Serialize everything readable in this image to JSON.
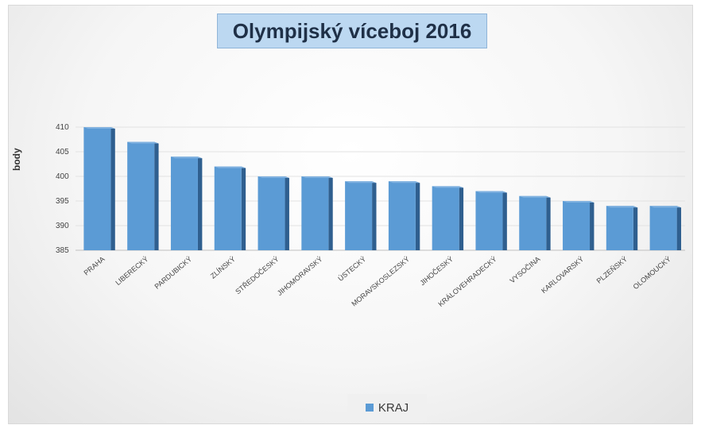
{
  "chart_data": {
    "type": "bar",
    "title": "Olympijský víceboj 2016",
    "ylabel": "body",
    "xlabel": "",
    "ylim": [
      385,
      410
    ],
    "yticks": [
      385,
      390,
      395,
      400,
      405,
      410
    ],
    "grid": true,
    "legend_position": "bottom",
    "series": [
      {
        "name": "KRAJ",
        "color": "#5b9bd5",
        "values": [
          410,
          407,
          404,
          402,
          400,
          400,
          399,
          399,
          398,
          397,
          396,
          395,
          394,
          394
        ]
      }
    ],
    "categories": [
      "PRAHA",
      "LIBERECKÝ",
      "PARDUBICKÝ",
      "ZLÍNSKÝ",
      "STŘEDOČESKÝ",
      "JIHOMORAVSKÝ",
      "ÚSTECKÝ",
      "MORAVSKOSLEZSKÝ",
      "JIHOČESKÝ",
      "KRÁLOVEHRADECKÝ",
      "VYSOČINA",
      "KARLOVARSKÝ",
      "PLZEŇSKÝ",
      "OLOMOUCKÝ"
    ]
  }
}
